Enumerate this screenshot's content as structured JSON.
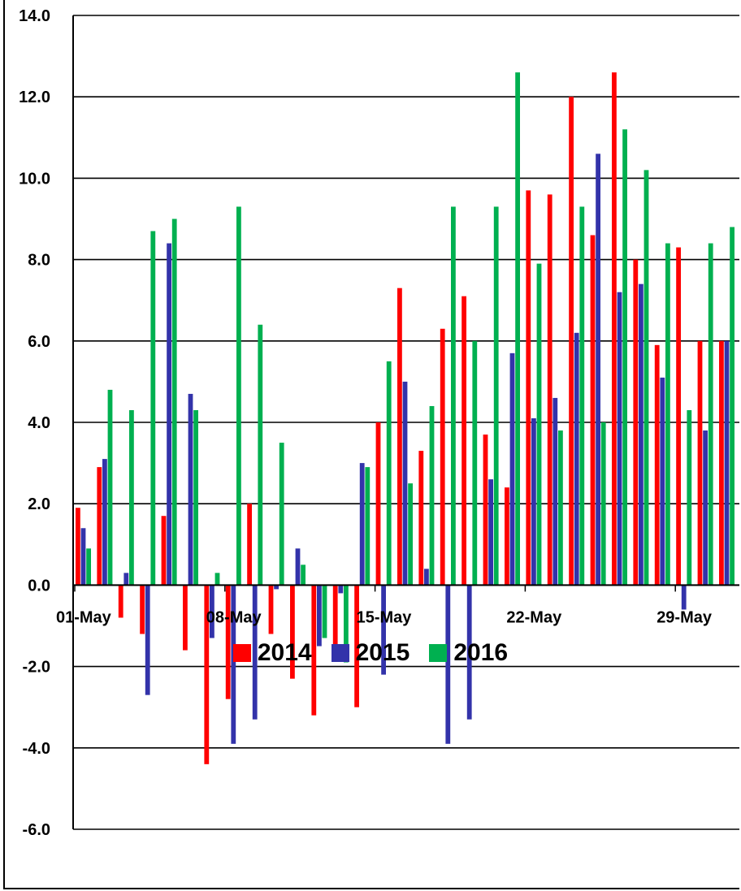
{
  "chart_data": {
    "type": "bar",
    "title": "",
    "xlabel": "",
    "ylabel": "",
    "ylim": [
      -6,
      14
    ],
    "yticks": [
      "14.0",
      "12.0",
      "10.0",
      "8.0",
      "6.0",
      "4.0",
      "2.0",
      "0.0",
      "-2.0",
      "-4.0",
      "-6.0"
    ],
    "ytick_values": [
      14,
      12,
      10,
      8,
      6,
      4,
      2,
      0,
      -2,
      -4,
      -6
    ],
    "xtick_labels": [
      "01-May",
      "08-May",
      "15-May",
      "22-May",
      "29-May"
    ],
    "xtick_days": [
      1,
      8,
      15,
      22,
      29
    ],
    "categories": [
      "01-May",
      "02-May",
      "03-May",
      "04-May",
      "05-May",
      "06-May",
      "07-May",
      "08-May",
      "09-May",
      "10-May",
      "11-May",
      "12-May",
      "13-May",
      "14-May",
      "15-May",
      "16-May",
      "17-May",
      "18-May",
      "19-May",
      "20-May",
      "21-May",
      "22-May",
      "23-May",
      "24-May",
      "25-May",
      "26-May",
      "27-May",
      "28-May",
      "29-May",
      "30-May",
      "31-May"
    ],
    "grid": true,
    "legend_position": "bottom",
    "series": [
      {
        "name": "2014",
        "color": "#ff0000",
        "values": [
          1.9,
          2.9,
          -0.8,
          -1.2,
          1.7,
          -1.6,
          -4.4,
          -2.8,
          2.0,
          -1.2,
          -2.3,
          -3.2,
          -1.7,
          -3.0,
          4.0,
          7.3,
          3.3,
          6.3,
          7.1,
          3.7,
          2.4,
          9.7,
          9.6,
          12.0,
          8.6,
          12.6,
          8.0,
          5.9,
          8.3,
          6.0,
          6.0
        ]
      },
      {
        "name": "2015",
        "color": "#3333aa",
        "values": [
          1.4,
          3.1,
          0.3,
          -2.7,
          8.4,
          4.7,
          -1.3,
          -3.9,
          -3.3,
          -0.1,
          0.9,
          -1.5,
          -0.2,
          3.0,
          -2.2,
          5.0,
          0.4,
          -3.9,
          -3.3,
          2.6,
          5.7,
          4.1,
          4.6,
          6.2,
          10.6,
          7.2,
          7.4,
          5.1,
          -0.6,
          3.8,
          6.0
        ]
      },
      {
        "name": "2016",
        "color": "#00b050",
        "values": [
          0.9,
          4.8,
          4.3,
          8.7,
          9.0,
          4.3,
          0.3,
          9.3,
          6.4,
          3.5,
          0.5,
          -1.3,
          -1.9,
          2.9,
          5.5,
          2.5,
          4.4,
          9.3,
          6.0,
          9.3,
          12.6,
          7.9,
          3.8,
          9.3,
          4.0,
          11.2,
          10.2,
          8.4,
          4.3,
          8.4,
          8.8
        ]
      }
    ]
  }
}
